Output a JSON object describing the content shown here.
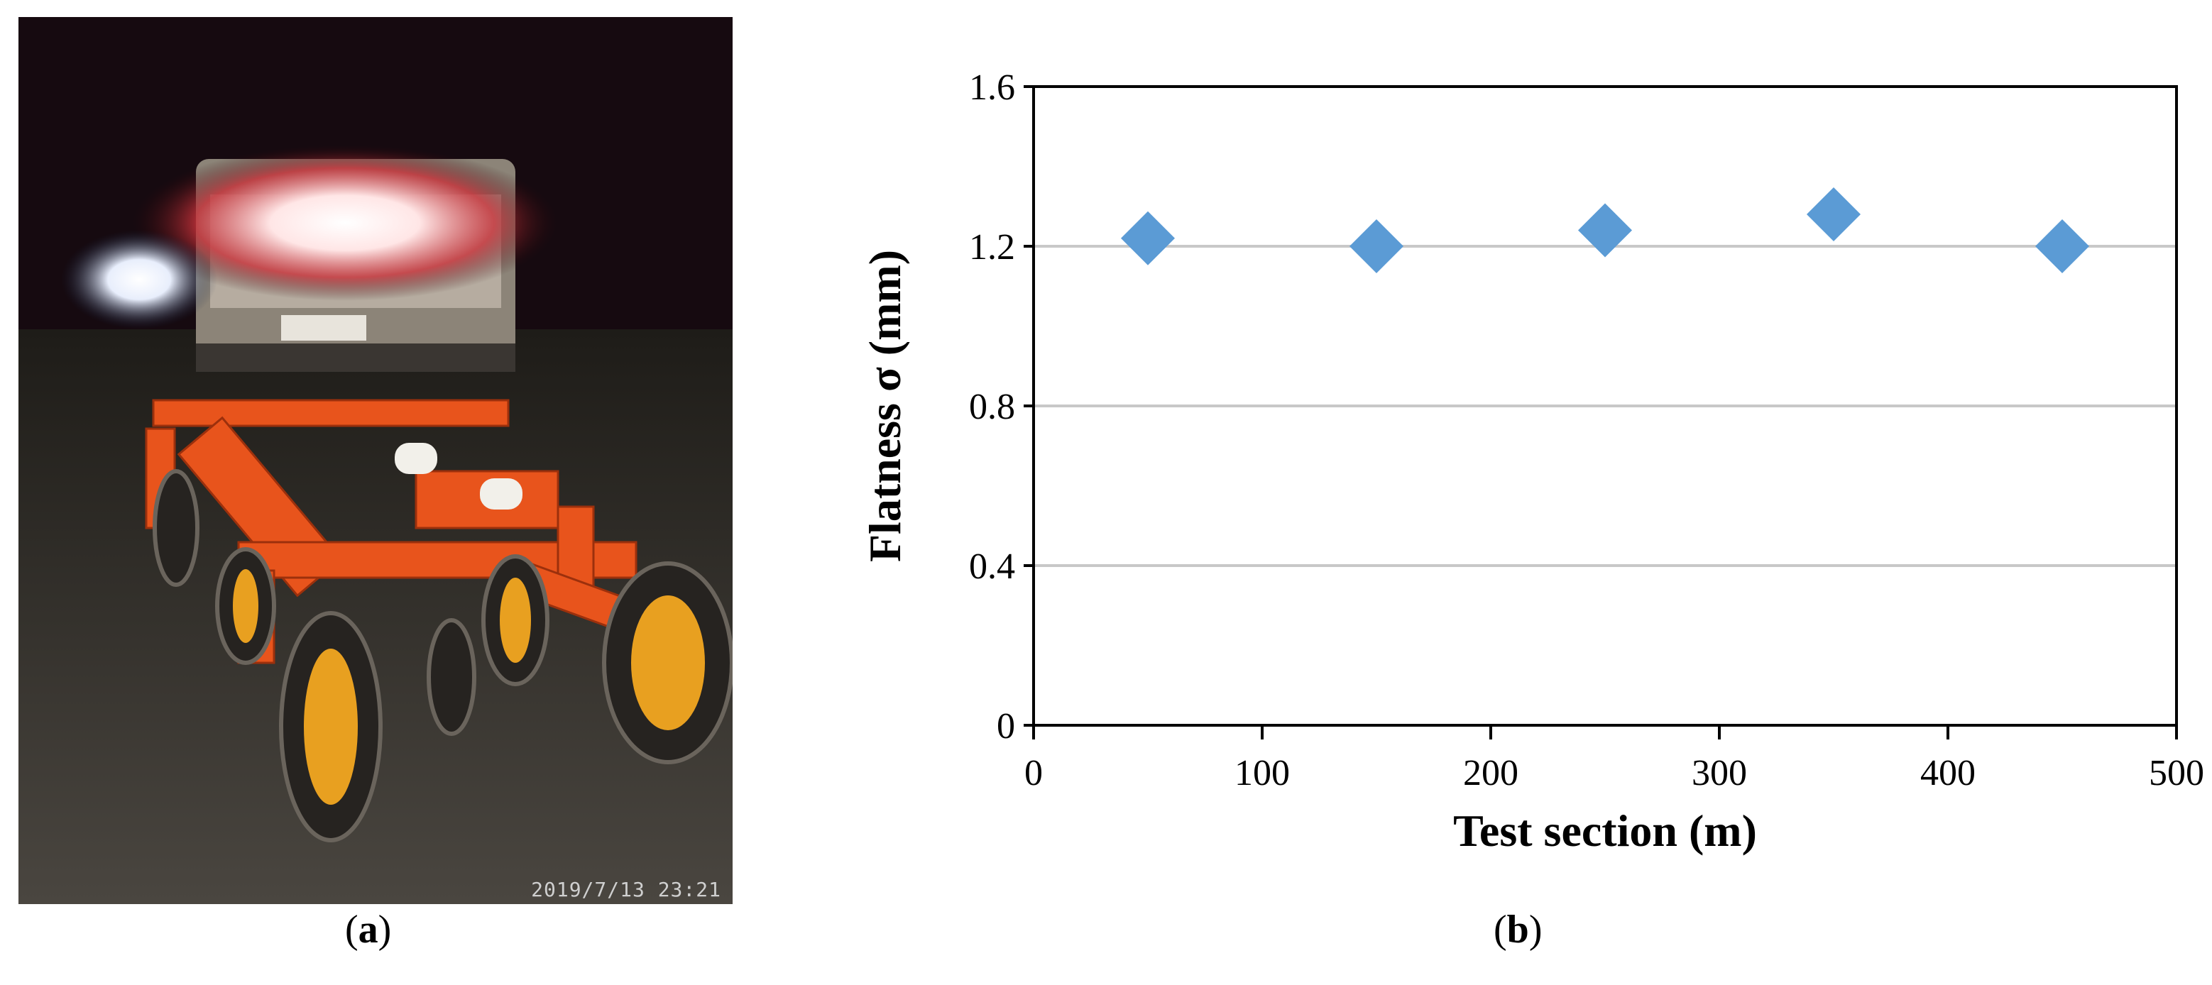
{
  "photo": {
    "timestamp": "2019/7/13  23:21",
    "description_icon": "road-flatness-test-rig-photo"
  },
  "captions": {
    "a": "a",
    "b": "b"
  },
  "chart_data": {
    "type": "scatter",
    "xlabel": "Test section (m)",
    "ylabel": "Flatness σ (mm)",
    "xlim": [
      0,
      500
    ],
    "ylim": [
      0,
      1.6
    ],
    "xticks": [
      0,
      100,
      200,
      300,
      400,
      500
    ],
    "yticks": [
      0,
      0.4,
      0.8,
      1.2,
      1.6
    ],
    "ytick_labels": [
      "0",
      "0.4",
      "0.8",
      "1.2",
      "1.6"
    ],
    "grid": "horizontal",
    "series": [
      {
        "marker": "diamond",
        "color": "#5b9bd5",
        "x": [
          50,
          150,
          250,
          350,
          450
        ],
        "y": [
          1.22,
          1.2,
          1.24,
          1.28,
          1.2
        ]
      }
    ]
  }
}
